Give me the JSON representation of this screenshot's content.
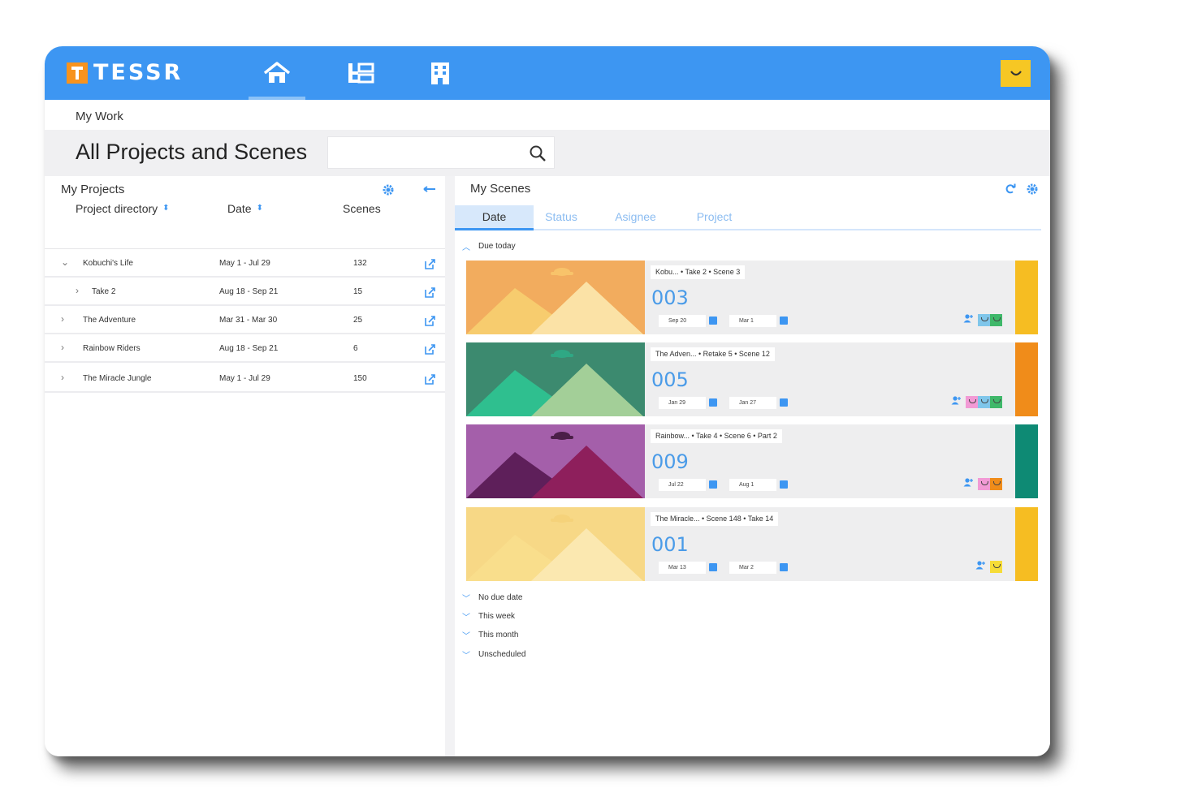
{
  "app": {
    "brand": "TESSR",
    "accent_color": "#3d96f2",
    "nav": [
      {
        "name": "home",
        "icon": "home-icon",
        "active": true
      },
      {
        "name": "tree",
        "icon": "tree-icon",
        "active": false
      },
      {
        "name": "building",
        "icon": "building-icon",
        "active": false
      }
    ],
    "user_color": "#f6c724"
  },
  "header": {
    "breadcrumb": "My Work",
    "title": "All Projects and Scenes",
    "search_placeholder": ""
  },
  "projects": {
    "title": "My Projects",
    "columns": [
      "Project directory",
      "Date",
      "Scenes"
    ],
    "rows": [
      {
        "chevron": "⌄",
        "name": "Kobuchi's Life",
        "date": "May 1 - Jul 29",
        "scenes": "132"
      },
      {
        "chevron": "›",
        "name": "Take 2",
        "date": "Aug 18 - Sep 21",
        "scenes": "15"
      },
      {
        "chevron": "›",
        "name": "The Adventure",
        "date": "Mar 31 - Mar 30",
        "scenes": "25"
      },
      {
        "chevron": "›",
        "name": "Rainbow Riders",
        "date": "Aug 18 - Sep 21",
        "scenes": "6"
      },
      {
        "chevron": "›",
        "name": "The Miracle Jungle",
        "date": "May 1 - Jul 29",
        "scenes": "150"
      }
    ]
  },
  "scenes": {
    "title": "My Scenes",
    "tabs": [
      "Date",
      "Status",
      "Asignee",
      "Project"
    ],
    "active_tab": "Date",
    "due_today_label": "Due today",
    "cards": [
      {
        "path": "Kobu... • Take 2 • Scene 3",
        "number": "003",
        "start": "Sep 20",
        "end": "Mar 1",
        "bg": "#f2ac5e",
        "back": "#f7cc6e",
        "front": "#fbe2a6",
        "cloud": "#f8c36a",
        "strip": "#f6bd22",
        "avatars": [
          "#7fc6ea",
          "#3fb86a"
        ]
      },
      {
        "path": "The Adven... • Retake 5 • Scene 12",
        "number": "005",
        "start": "Jan 29",
        "end": "Jan 27",
        "bg": "#3c8a6f",
        "back": "#2fbf8f",
        "front": "#a3cf98",
        "cloud": "#2fa884",
        "strip": "#f08c1a",
        "avatars": [
          "#f29ad5",
          "#7fc6ea",
          "#3fb86a"
        ]
      },
      {
        "path": "Rainbow... • Take 4 • Scene 6 • Part 2",
        "number": "009",
        "start": "Jul 22",
        "end": "Aug 1",
        "bg": "#a45faa",
        "back": "#5e1f5a",
        "front": "#8e1f5c",
        "cloud": "#4b1f48",
        "strip": "#0e8a74",
        "avatars": [
          "#f29ad5",
          "#f08c1a"
        ]
      },
      {
        "path": "The Miracle... • Scene 148 • Take 14",
        "number": "001",
        "start": "Mar 13",
        "end": "Mar 2",
        "bg": "#f7d886",
        "back": "#f9de8c",
        "front": "#fbe8b0",
        "cloud": "#f5d27a",
        "strip": "#f6bd22",
        "avatars": [
          "#f6dc38"
        ]
      }
    ],
    "groups": [
      "No due date",
      "This week",
      "This month",
      "Unscheduled"
    ]
  }
}
